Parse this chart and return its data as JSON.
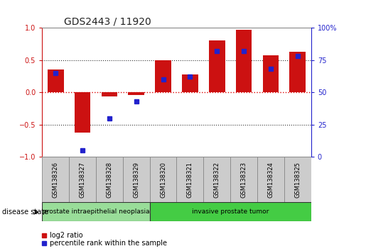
{
  "title": "GDS2443 / 11920",
  "samples": [
    "GSM138326",
    "GSM138327",
    "GSM138328",
    "GSM138329",
    "GSM138320",
    "GSM138321",
    "GSM138322",
    "GSM138323",
    "GSM138324",
    "GSM138325"
  ],
  "log2_ratio": [
    0.35,
    -0.62,
    -0.07,
    -0.04,
    0.5,
    0.27,
    0.8,
    0.97,
    0.57,
    0.63
  ],
  "percentile_rank": [
    65,
    5,
    30,
    43,
    60,
    62,
    82,
    82,
    68,
    78
  ],
  "ylim": [
    -1,
    1
  ],
  "yticks_left": [
    -1,
    -0.5,
    0,
    0.5,
    1
  ],
  "yticks_right_vals": [
    -1,
    -0.5,
    0,
    0.5,
    1
  ],
  "yticks_right_labels": [
    "0",
    "25",
    "50",
    "75",
    "100%"
  ],
  "bar_color": "#cc1111",
  "dot_color": "#2222cc",
  "hline_zero_color": "#dd0000",
  "dotted_line_color": "#333333",
  "groups": [
    {
      "label": "prostate intraepithelial neoplasia",
      "start": 0,
      "end": 4,
      "color": "#99dd99"
    },
    {
      "label": "invasive prostate tumor",
      "start": 4,
      "end": 10,
      "color": "#44cc44"
    }
  ],
  "disease_state_label": "disease state",
  "legend_items": [
    {
      "label": "log2 ratio",
      "color": "#cc1111"
    },
    {
      "label": "percentile rank within the sample",
      "color": "#2222cc"
    }
  ],
  "background_color": "#ffffff",
  "cell_color": "#cccccc",
  "cell_border_color": "#888888",
  "bar_width": 0.6,
  "title_fontsize": 10,
  "tick_fontsize": 7,
  "label_fontsize": 6
}
